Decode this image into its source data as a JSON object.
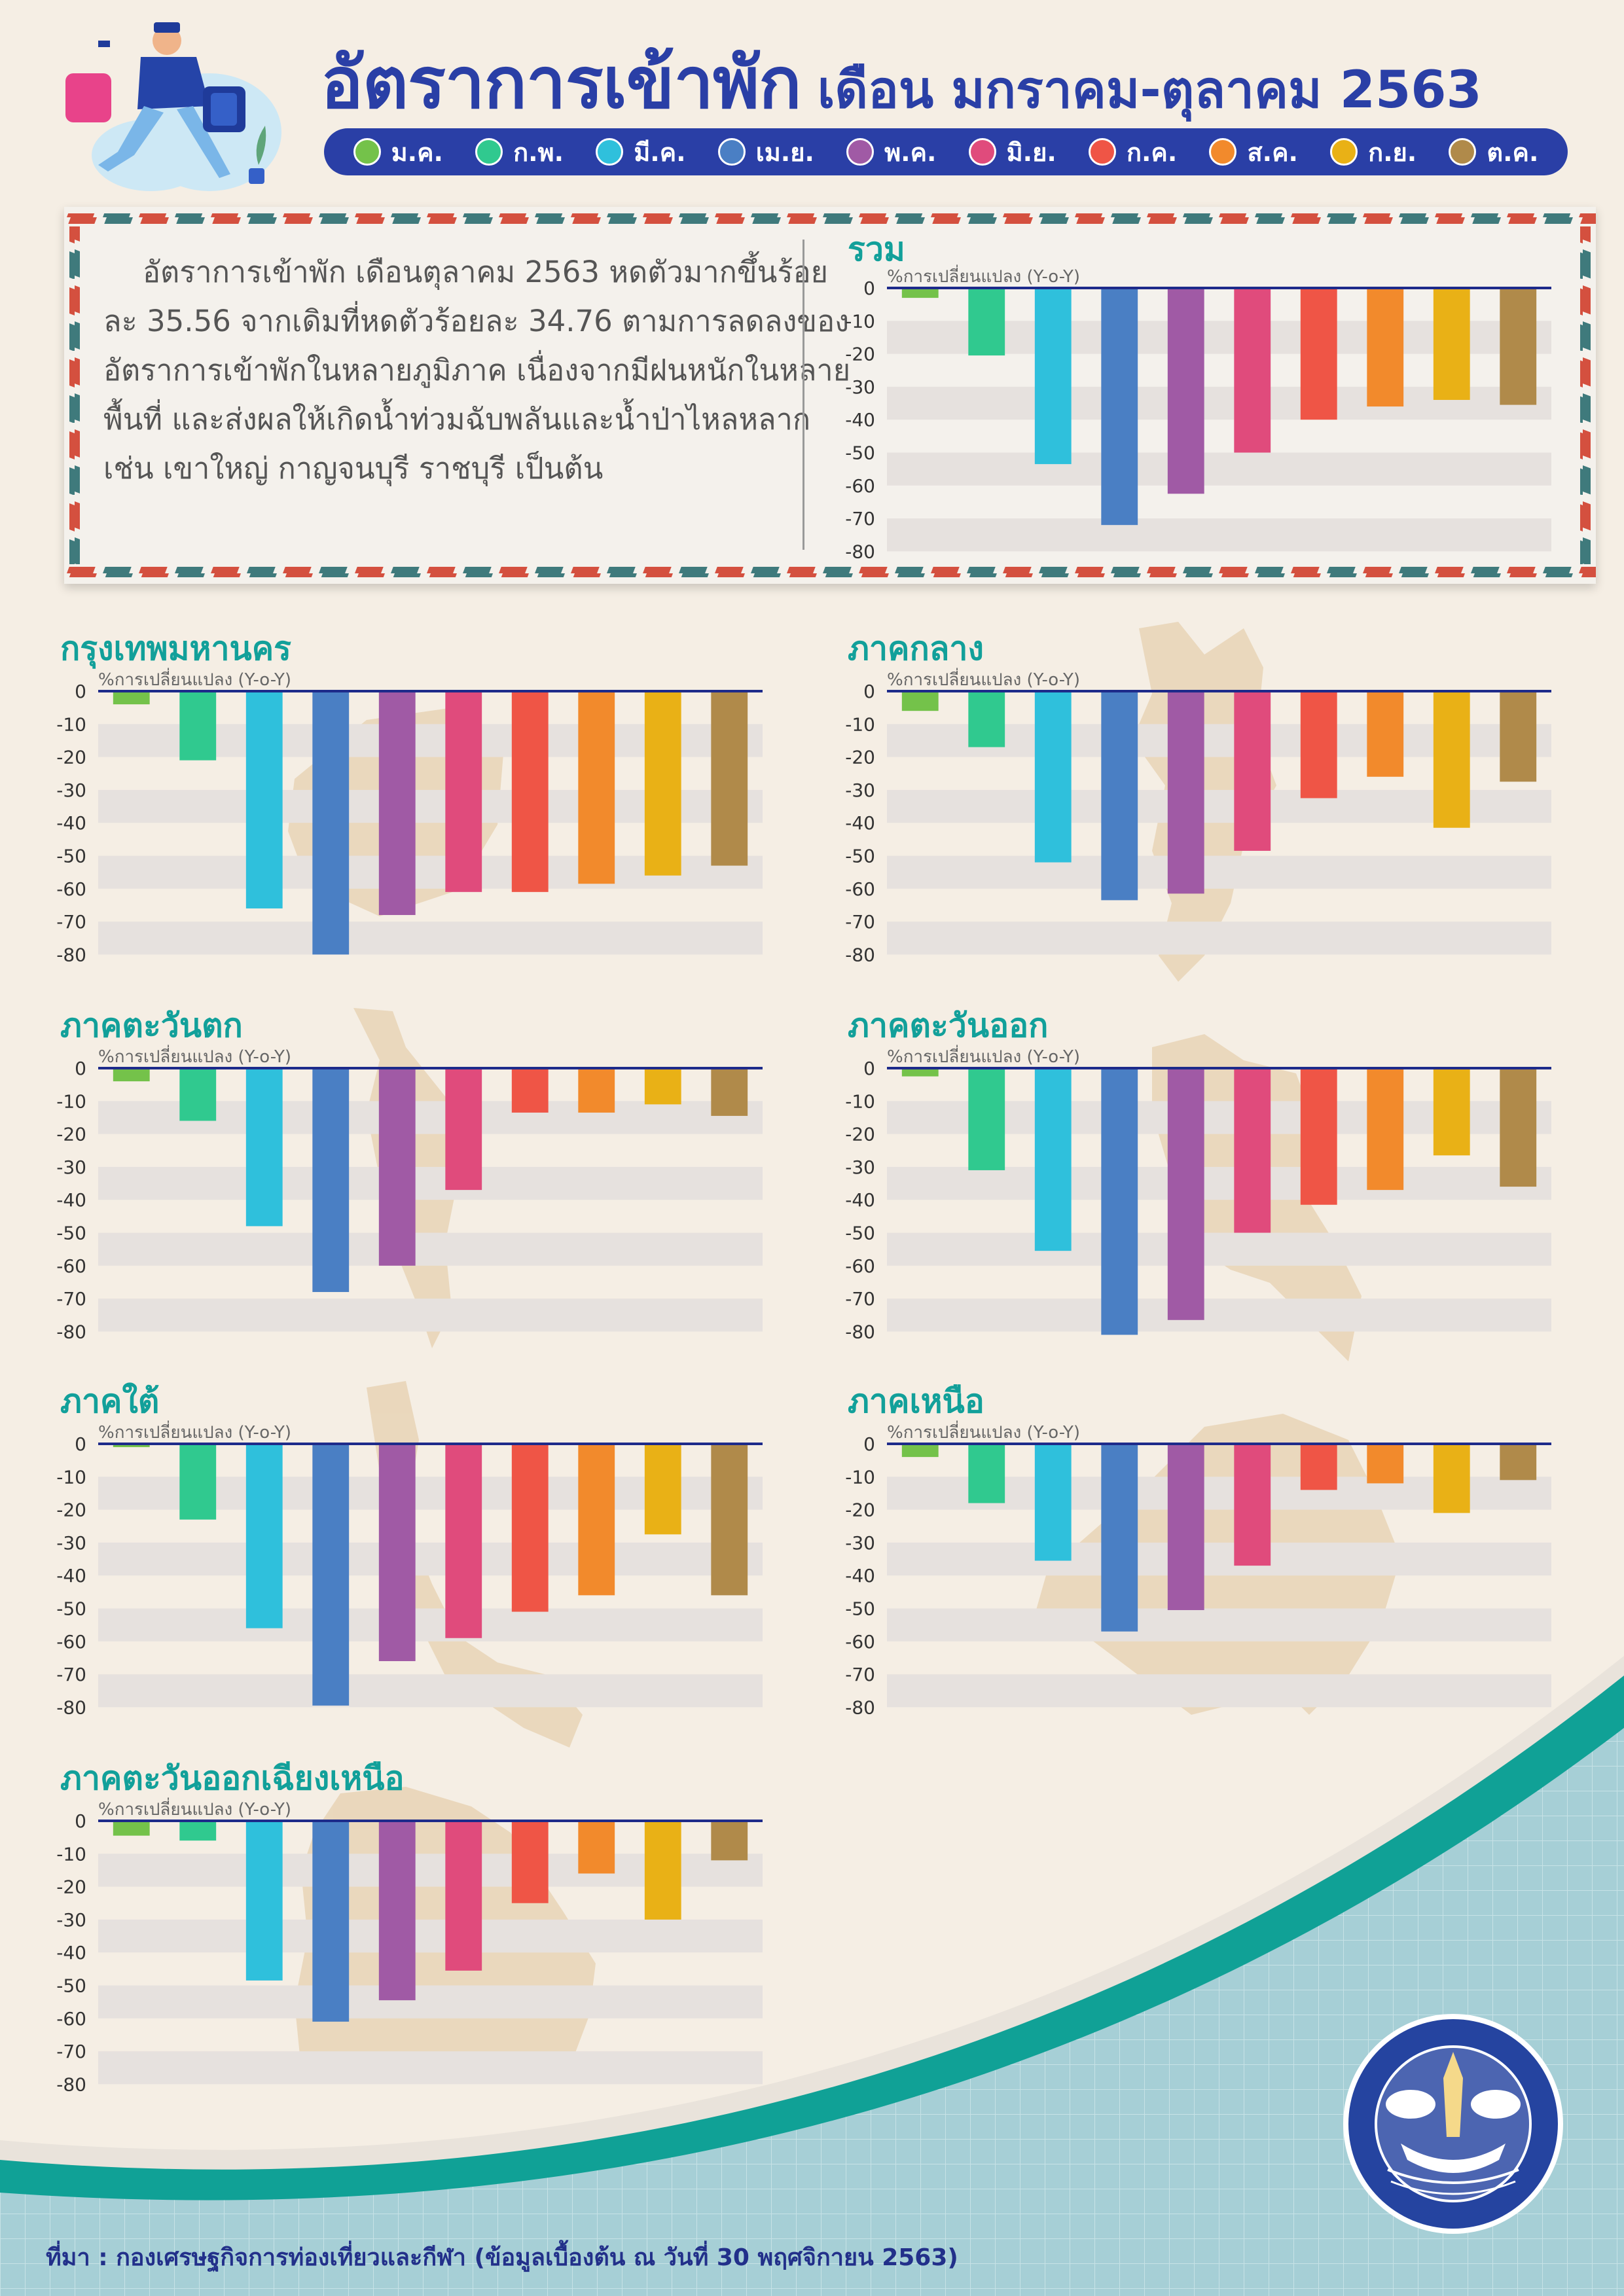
{
  "header": {
    "title_main": "อัตราการเข้าพัก",
    "title_sub": "เดือน มกราคม-ตุลาคม 2563"
  },
  "months": [
    {
      "label": "ม.ค.",
      "color": "#74c24a"
    },
    {
      "label": "ก.พ.",
      "color": "#30c98f"
    },
    {
      "label": "มี.ค.",
      "color": "#2fc0dc"
    },
    {
      "label": "เม.ย.",
      "color": "#4a7fc4"
    },
    {
      "label": "พ.ค.",
      "color": "#a05aa5"
    },
    {
      "label": "มิ.ย.",
      "color": "#e04b7c"
    },
    {
      "label": "ก.ค.",
      "color": "#ef5546"
    },
    {
      "label": "ส.ค.",
      "color": "#f28a2c"
    },
    {
      "label": "ก.ย.",
      "color": "#e9b116"
    },
    {
      "label": "ต.ค.",
      "color": "#b08a4a"
    }
  ],
  "summary_text": "อัตราการเข้าพัก เดือนตุลาคม 2563 หดตัวมากขึ้นร้อยละ 35.56 จากเดิมที่หดตัวร้อยละ 34.76 ตามการลดลงของอัตราการเข้าพักในหลายภูมิภาค เนื่องจากมีฝนหนักในหลายพื้นที่ และส่งผลให้เกิดน้ำท่วมฉับพลันและน้ำป่าไหลหลาก เช่น เขาใหญ่ กาญจนบุรี ราชบุรี เป็นต้น",
  "source": "ที่มา : กองเศรษฐกิจการท่องเที่ยวและกีฬา (ข้อมูลเบื้องต้น ณ วันที่ 30 พฤศจิกายน 2563)",
  "chart_data": [
    {
      "id": "total",
      "type": "bar",
      "title": "รวม",
      "ylabel": "%การเปลี่ยนแปลง (Y-o-Y)",
      "ylim": [
        -80,
        0
      ],
      "yticks": [
        "0",
        "-10",
        "-20",
        "-30",
        "-40",
        "-50",
        "-60",
        "-70",
        "-80"
      ],
      "categories": [
        "ม.ค.",
        "ก.พ.",
        "มี.ค.",
        "เม.ย.",
        "พ.ค.",
        "มิ.ย.",
        "ก.ค.",
        "ส.ค.",
        "ก.ย.",
        "ต.ค."
      ],
      "values": [
        -3,
        -20.5,
        -53.5,
        -72,
        -62.5,
        -50,
        -40,
        -36,
        -34,
        -35.5
      ]
    },
    {
      "id": "bangkok",
      "type": "bar",
      "title": "กรุงเทพมหานคร",
      "ylabel": "%การเปลี่ยนแปลง (Y-o-Y)",
      "ylim": [
        -80,
        0
      ],
      "yticks": [
        "0",
        "-10",
        "-20",
        "-30",
        "-40",
        "-50",
        "-60",
        "-70",
        "-80"
      ],
      "categories": [
        "ม.ค.",
        "ก.พ.",
        "มี.ค.",
        "เม.ย.",
        "พ.ค.",
        "มิ.ย.",
        "ก.ค.",
        "ส.ค.",
        "ก.ย.",
        "ต.ค."
      ],
      "values": [
        -4,
        -21,
        -66,
        -80,
        -68,
        -61,
        -61,
        -58.5,
        -56,
        -53
      ]
    },
    {
      "id": "central",
      "type": "bar",
      "title": "ภาคกลาง",
      "ylabel": "%การเปลี่ยนแปลง (Y-o-Y)",
      "ylim": [
        -80,
        0
      ],
      "yticks": [
        "0",
        "-10",
        "-20",
        "-30",
        "-40",
        "-50",
        "-60",
        "-70",
        "-80"
      ],
      "categories": [
        "ม.ค.",
        "ก.พ.",
        "มี.ค.",
        "เม.ย.",
        "พ.ค.",
        "มิ.ย.",
        "ก.ค.",
        "ส.ค.",
        "ก.ย.",
        "ต.ค."
      ],
      "values": [
        -6,
        -17,
        -52,
        -63.5,
        -61.5,
        -48.5,
        -32.5,
        -26,
        -41.5,
        -27.5
      ]
    },
    {
      "id": "west",
      "type": "bar",
      "title": "ภาคตะวันตก",
      "ylabel": "%การเปลี่ยนแปลง (Y-o-Y)",
      "ylim": [
        -80,
        0
      ],
      "yticks": [
        "0",
        "-10",
        "-20",
        "-30",
        "-40",
        "-50",
        "-60",
        "-70",
        "-80"
      ],
      "categories": [
        "ม.ค.",
        "ก.พ.",
        "มี.ค.",
        "เม.ย.",
        "พ.ค.",
        "มิ.ย.",
        "ก.ค.",
        "ส.ค.",
        "ก.ย.",
        "ต.ค."
      ],
      "values": [
        -4,
        -16,
        -48,
        -68,
        -60,
        -37,
        -13.5,
        -13.5,
        -11,
        -14.5
      ]
    },
    {
      "id": "east",
      "type": "bar",
      "title": "ภาคตะวันออก",
      "ylabel": "%การเปลี่ยนแปลง (Y-o-Y)",
      "ylim": [
        -80,
        0
      ],
      "yticks": [
        "0",
        "-10",
        "-20",
        "-30",
        "-40",
        "-50",
        "-60",
        "-70",
        "-80"
      ],
      "categories": [
        "ม.ค.",
        "ก.พ.",
        "มี.ค.",
        "เม.ย.",
        "พ.ค.",
        "มิ.ย.",
        "ก.ค.",
        "ส.ค.",
        "ก.ย.",
        "ต.ค."
      ],
      "values": [
        -2.5,
        -31,
        -55.5,
        -81,
        -76.5,
        -50,
        -41.5,
        -37,
        -26.5,
        -36
      ]
    },
    {
      "id": "south",
      "type": "bar",
      "title": "ภาคใต้",
      "ylabel": "%การเปลี่ยนแปลง (Y-o-Y)",
      "ylim": [
        -80,
        0
      ],
      "yticks": [
        "0",
        "-10",
        "-20",
        "-30",
        "-40",
        "-50",
        "-60",
        "-70",
        "-80"
      ],
      "categories": [
        "ม.ค.",
        "ก.พ.",
        "มี.ค.",
        "เม.ย.",
        "พ.ค.",
        "มิ.ย.",
        "ก.ค.",
        "ส.ค.",
        "ก.ย.",
        "ต.ค."
      ],
      "values": [
        -1,
        -23,
        -56,
        -79.5,
        -66,
        -59,
        -51,
        -46,
        -27.5,
        -46
      ]
    },
    {
      "id": "north",
      "type": "bar",
      "title": "ภาคเหนือ",
      "ylabel": "%การเปลี่ยนแปลง (Y-o-Y)",
      "ylim": [
        -80,
        0
      ],
      "yticks": [
        "0",
        "-10",
        "-20",
        "-30",
        "-40",
        "-50",
        "-60",
        "-70",
        "-80"
      ],
      "categories": [
        "ม.ค.",
        "ก.พ.",
        "มี.ค.",
        "เม.ย.",
        "พ.ค.",
        "มิ.ย.",
        "ก.ค.",
        "ส.ค.",
        "ก.ย.",
        "ต.ค."
      ],
      "values": [
        -4,
        -18,
        -35.5,
        -57,
        -50.5,
        -37,
        -14,
        -12,
        -21,
        -11
      ]
    },
    {
      "id": "northeast",
      "type": "bar",
      "title": "ภาคตะวันออกเฉียงเหนือ",
      "ylabel": "%การเปลี่ยนแปลง (Y-o-Y)",
      "ylim": [
        -80,
        0
      ],
      "yticks": [
        "0",
        "-10",
        "-20",
        "-30",
        "-40",
        "-50",
        "-60",
        "-70",
        "-80"
      ],
      "categories": [
        "ม.ค.",
        "ก.พ.",
        "มี.ค.",
        "เม.ย.",
        "พ.ค.",
        "มิ.ย.",
        "ก.ค.",
        "ส.ค.",
        "ก.ย.",
        "ต.ค."
      ],
      "values": [
        -4.5,
        -6,
        -48.5,
        -61,
        -54.5,
        -45.5,
        -25,
        -16,
        -30,
        -12
      ]
    }
  ]
}
